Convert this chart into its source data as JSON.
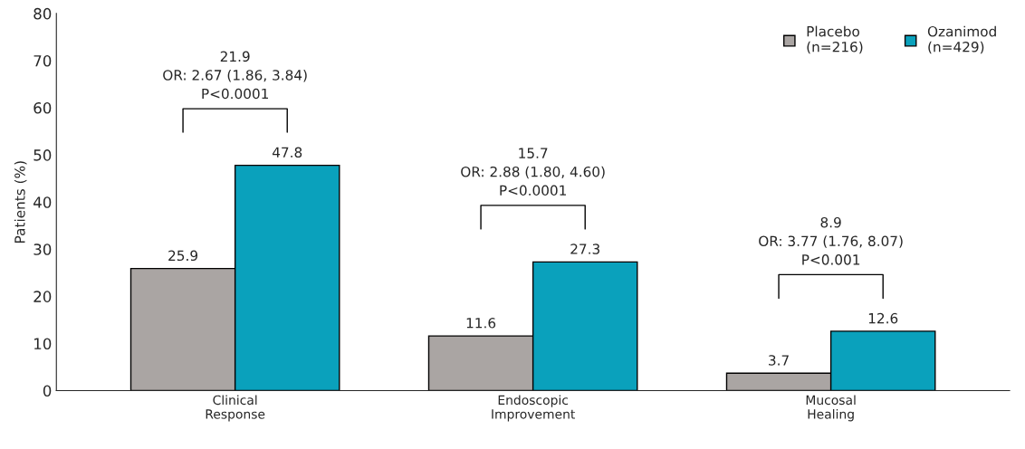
{
  "chart_data": {
    "type": "bar",
    "ylabel": "Patients (%)",
    "categories": [
      "Clinical\nResponse",
      "Endoscopic\nImprovement",
      "Mucosal\nHealing"
    ],
    "series": [
      {
        "name": "Placebo\n(n=216)",
        "color": "#aaa5a3",
        "values": [
          25.9,
          11.6,
          3.7
        ]
      },
      {
        "name": "Ozanimod\n(n=429)",
        "color": "#0aa1bc",
        "values": [
          47.8,
          27.3,
          12.6
        ]
      }
    ],
    "ylim": [
      0,
      80
    ],
    "yticks": [
      0,
      10,
      20,
      30,
      40,
      50,
      60,
      70,
      80
    ],
    "annotations": [
      "21.9\nOR: 2.67 (1.86, 3.84)\nP<0.0001",
      "15.7\nOR: 2.88 (1.80, 4.60)\nP<0.0001",
      "8.9\nOR: 3.77 (1.76, 8.07)\nP<0.001"
    ],
    "data_labels": true,
    "grid": false,
    "legend": "top right"
  }
}
